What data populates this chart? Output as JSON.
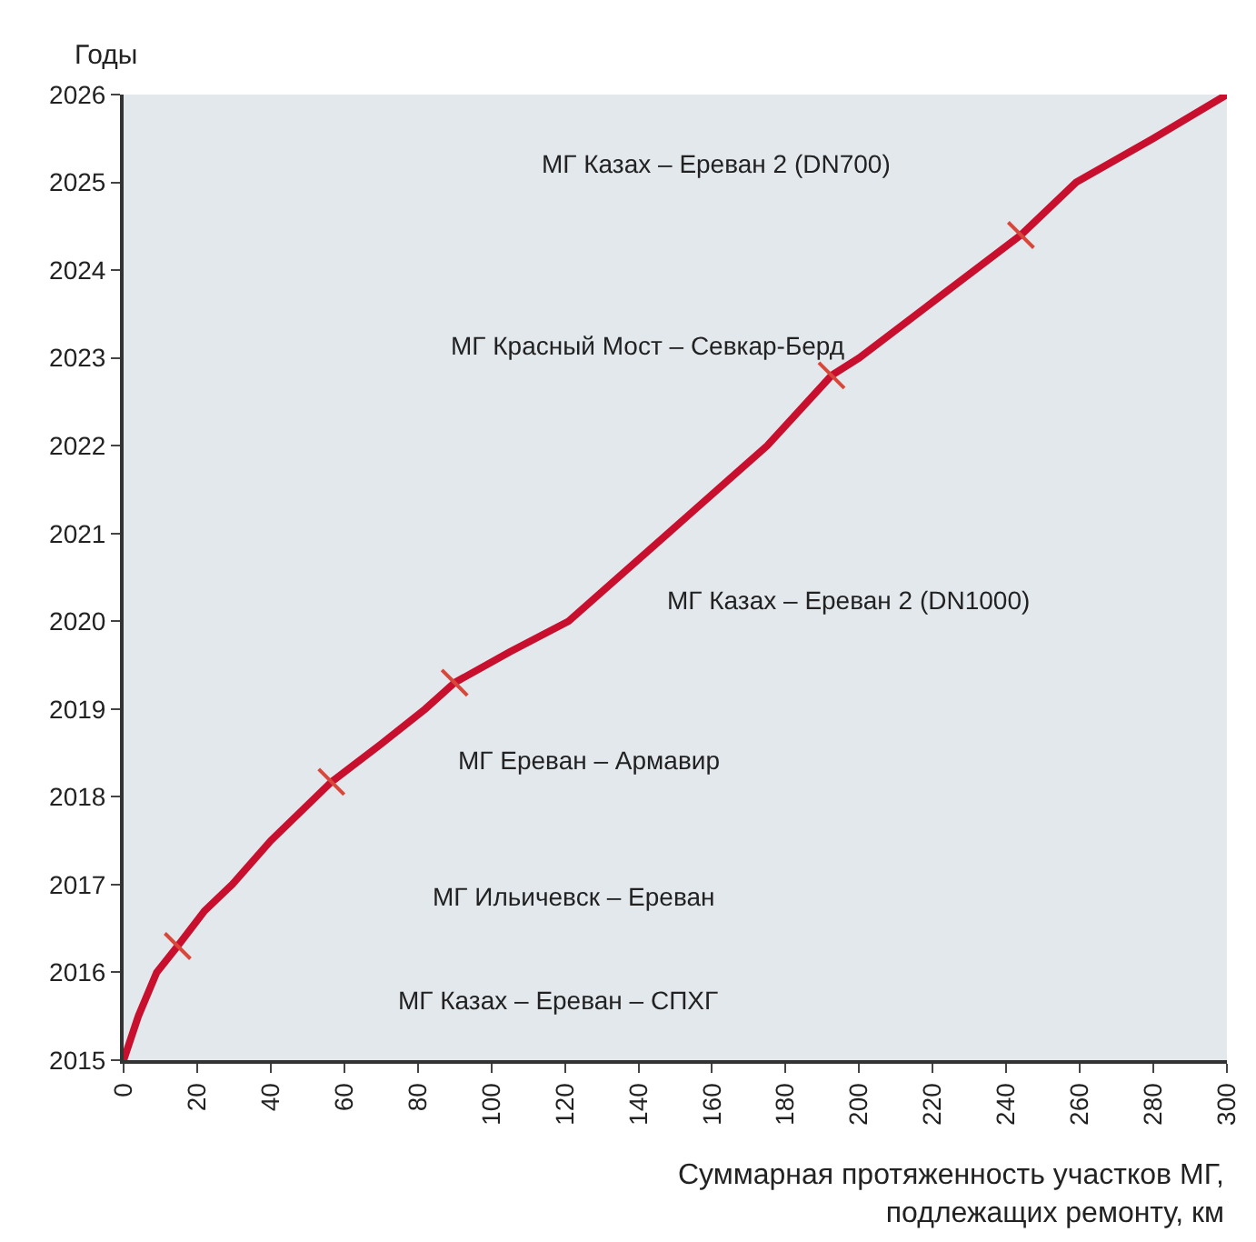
{
  "chart_data": {
    "type": "line",
    "xlabel": "Суммарная протяженность участков МГ,\nподлежащих ремонту, км",
    "ylabel": "Годы",
    "x": [
      0,
      4,
      9,
      14.7,
      22,
      29.5,
      40,
      56.5,
      70,
      82,
      90,
      105,
      121,
      148,
      175,
      192.5,
      200,
      222,
      244,
      259,
      280,
      300
    ],
    "series": [
      {
        "color": "#c8102e",
        "values": [
          2015,
          2015.5,
          2016,
          2016.3,
          2016.7,
          2017,
          2017.5,
          2018.17,
          2018.6,
          2019,
          2019.3,
          2019.65,
          2020,
          2021,
          2022,
          2022.8,
          2023,
          2023.7,
          2024.4,
          2025,
          2025.5,
          2026
        ],
        "line_style": "solid",
        "marker": "none"
      },
      {
        "type": "scatter",
        "color": "#d9473a",
        "x": [
          14.7,
          56.5,
          90,
          192.5,
          244
        ],
        "values": [
          2016.3,
          2018.17,
          2019.3,
          2022.8,
          2024.4
        ],
        "marker": "cross"
      }
    ],
    "annotations": [
      "МГ Казах – Ереван – СПХГ",
      "МГ Ильичевск – Ереван",
      "МГ Ереван – Армавир",
      "МГ Казах – Ереван 2 (DN1000)",
      "МГ Красный Мост – Севкар-Берд",
      "МГ Казах – Ереван 2 (DN700)"
    ],
    "xlim": [
      0,
      300
    ],
    "xticks": [
      0,
      20,
      40,
      60,
      80,
      100,
      120,
      140,
      160,
      180,
      200,
      220,
      240,
      260,
      280,
      300
    ],
    "ylim": [
      2015,
      2026
    ],
    "yticks": [
      2015,
      2016,
      2017,
      2018,
      2019,
      2020,
      2021,
      2022,
      2023,
      2024,
      2025,
      2026
    ],
    "grid": false,
    "legend": false
  }
}
